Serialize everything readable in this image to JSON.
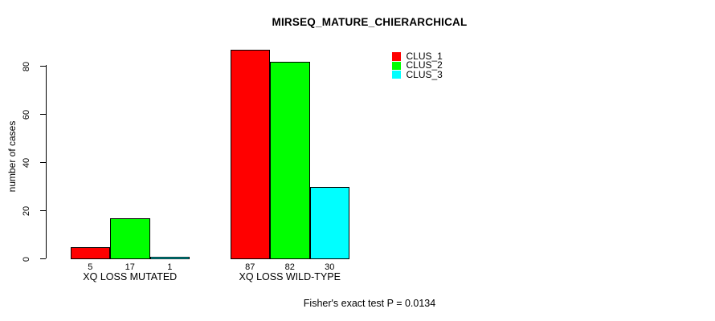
{
  "chart_data": {
    "type": "bar",
    "title": "MIRSEQ_MATURE_CHIERARCHICAL",
    "ylabel": "number of cases",
    "xlabel": "",
    "categories": [
      "XQ LOSS MUTATED",
      "XQ LOSS WILD-TYPE"
    ],
    "series": [
      {
        "name": "CLUS_1",
        "color": "#ff0000",
        "values": [
          5,
          87
        ]
      },
      {
        "name": "CLUS_2",
        "color": "#00ff00",
        "values": [
          17,
          82
        ]
      },
      {
        "name": "CLUS_3",
        "color": "#00ffff",
        "values": [
          1,
          30
        ]
      }
    ],
    "bar_value_labels": [
      [
        "5",
        "17",
        "1"
      ],
      [
        "87",
        "82",
        "30"
      ]
    ],
    "yticks": [
      0,
      20,
      40,
      60,
      80
    ],
    "ylim": [
      0,
      87
    ],
    "grid": false,
    "legend_position": "top-right",
    "bar_border_color": "#000000",
    "background_color": "#ffffff",
    "annotation": "Fisher's exact test P = 0.0134"
  }
}
